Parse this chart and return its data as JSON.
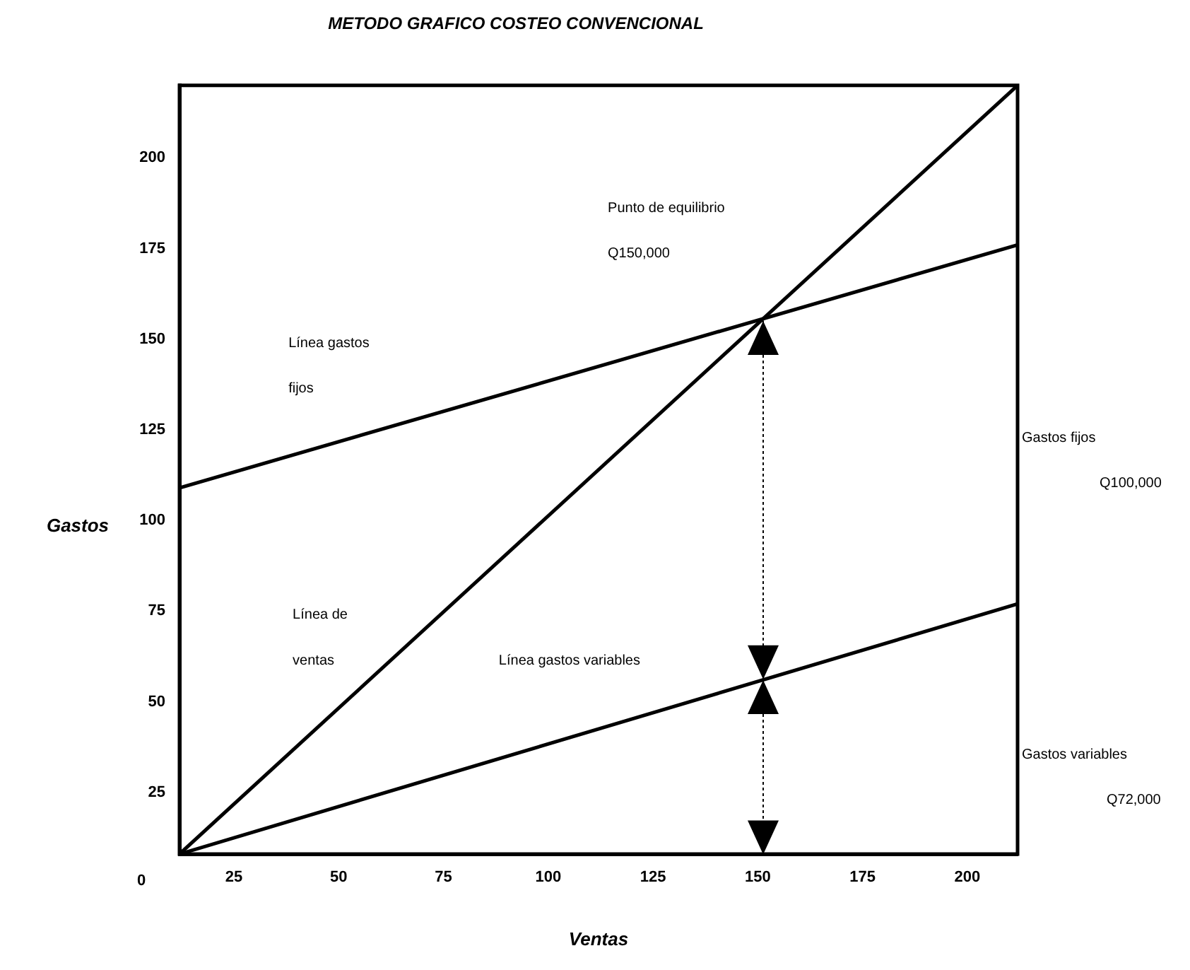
{
  "chart_data": {
    "type": "line",
    "title": "METODO GRAFICO COSTEO CONVENCIONAL",
    "xlabel": "Ventas",
    "ylabel": "Gastos",
    "x": [
      12,
      212
    ],
    "series": [
      {
        "color": "#000000",
        "values": [
          8,
          220
        ]
      },
      {
        "color": "#000000",
        "values": [
          109,
          176
        ]
      },
      {
        "color": "#000000",
        "values": [
          8,
          77
        ]
      }
    ],
    "xlim": [
      12,
      212
    ],
    "xticks": [
      25,
      50,
      75,
      100,
      125,
      150,
      175,
      200
    ],
    "ylim": [
      8,
      220
    ],
    "yticks": [
      25,
      50,
      75,
      100,
      125,
      150,
      175,
      200
    ],
    "grid": false,
    "legend": false,
    "marker": "none",
    "line_style": "solid",
    "annotations": [
      "Punto de equilibrio",
      "Q150,000",
      "Línea gastos",
      "fijos",
      "Línea de",
      "ventas",
      "Línea gastos variables",
      "Gastos fijos",
      "Q100,000",
      "Gastos variables",
      "Q72,000",
      "0"
    ]
  }
}
